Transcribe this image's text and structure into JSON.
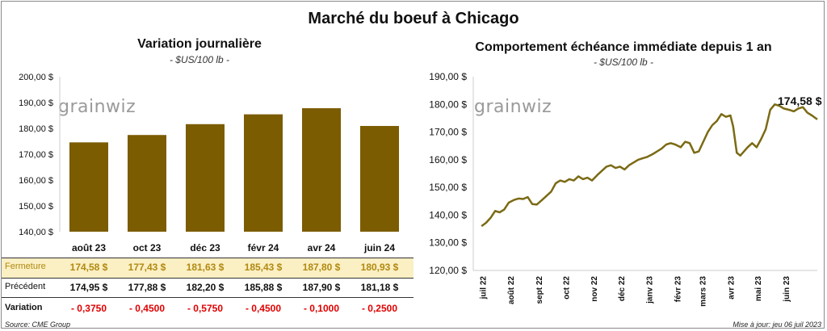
{
  "title": "Marché du boeuf à Chicago",
  "left_panel": {
    "title": "Variation journalière",
    "unit": "- $US/100 lb -",
    "watermark": "grainwiz",
    "rows": {
      "fermeture_label": "Fermeture",
      "precedent_label": "Précédent",
      "variation_label": "Variation"
    },
    "months": [
      "août 23",
      "oct 23",
      "déc 23",
      "févr 24",
      "avr 24",
      "juin 24"
    ],
    "fermeture": [
      "174,58  $",
      "177,43  $",
      "181,63  $",
      "185,43  $",
      "187,80  $",
      "180,93  $"
    ],
    "precedent": [
      "174,95  $",
      "177,88  $",
      "182,20  $",
      "185,88  $",
      "187,90  $",
      "181,18  $"
    ],
    "variation": [
      "- 0,3750",
      "- 0,4500",
      "- 0,5750",
      "- 0,4500",
      "- 0,1000",
      "- 0,2500"
    ]
  },
  "right_panel": {
    "title": "Comportement  échéance immédiate depuis 1 an",
    "unit": "- $US/100 lb -",
    "watermark": "grainwiz",
    "last_label": "174,58 $"
  },
  "footer": {
    "source": "Source: CME Group",
    "updated": "Mise à jour: jeu 06 juil 2023"
  },
  "colors": {
    "bar": "#7b5c00",
    "line": "#7b6a14",
    "highlight_row": "#fbefc4",
    "fermeture_text": "#b08a10",
    "negative": "#e00000"
  },
  "chart_data": [
    {
      "type": "bar",
      "categories": [
        "août 23",
        "oct 23",
        "déc 23",
        "févr 24",
        "avr 24",
        "juin 24"
      ],
      "values": [
        174.58,
        177.43,
        181.63,
        185.43,
        187.8,
        180.93
      ],
      "ylim": [
        140,
        200
      ],
      "yticks": [
        "140,00 $",
        "150,00 $",
        "160,00 $",
        "170,00 $",
        "180,00 $",
        "190,00 $",
        "200,00 $"
      ],
      "ytick_values": [
        140,
        150,
        160,
        170,
        180,
        190,
        200
      ],
      "grid": false
    },
    {
      "type": "line",
      "ylim": [
        120,
        190
      ],
      "yticks": [
        "120,00 $",
        "130,00 $",
        "140,00 $",
        "150,00 $",
        "160,00 $",
        "170,00 $",
        "180,00 $",
        "190,00 $"
      ],
      "ytick_values": [
        120,
        130,
        140,
        150,
        160,
        170,
        180,
        190
      ],
      "xlabels": [
        "juil 22",
        "août 22",
        "sept 22",
        "oct 22",
        "nov 22",
        "déc 22",
        "janv 23",
        "févr 23",
        "mars 23",
        "avr 23",
        "mai 23",
        "juin 23"
      ],
      "xlabel_dates": [
        "2022-07-01",
        "2022-08-01",
        "2022-09-01",
        "2022-10-01",
        "2022-11-01",
        "2022-12-01",
        "2023-01-01",
        "2023-02-01",
        "2023-03-01",
        "2023-04-01",
        "2023-05-01",
        "2023-06-01"
      ],
      "xlim": [
        "2022-06-28",
        "2023-07-06"
      ],
      "series": [
        {
          "x": [
            "2022-06-30",
            "2022-07-05",
            "2022-07-10",
            "2022-07-15",
            "2022-07-20",
            "2022-07-25",
            "2022-07-30",
            "2022-08-05",
            "2022-08-10",
            "2022-08-15",
            "2022-08-20",
            "2022-08-25",
            "2022-08-30",
            "2022-09-05",
            "2022-09-10",
            "2022-09-15",
            "2022-09-20",
            "2022-09-25",
            "2022-09-30",
            "2022-10-05",
            "2022-10-10",
            "2022-10-15",
            "2022-10-20",
            "2022-10-25",
            "2022-10-30",
            "2022-11-05",
            "2022-11-10",
            "2022-11-15",
            "2022-11-20",
            "2022-11-25",
            "2022-11-30",
            "2022-12-05",
            "2022-12-10",
            "2022-12-15",
            "2022-12-20",
            "2022-12-25",
            "2022-12-30",
            "2023-01-05",
            "2023-01-10",
            "2023-01-15",
            "2023-01-20",
            "2023-01-25",
            "2023-01-30",
            "2023-02-05",
            "2023-02-10",
            "2023-02-15",
            "2023-02-20",
            "2023-02-25",
            "2023-03-02",
            "2023-03-07",
            "2023-03-12",
            "2023-03-17",
            "2023-03-22",
            "2023-03-27",
            "2023-04-01",
            "2023-04-04",
            "2023-04-08",
            "2023-04-12",
            "2023-04-16",
            "2023-04-20",
            "2023-04-25",
            "2023-04-30",
            "2023-05-05",
            "2023-05-10",
            "2023-05-15",
            "2023-05-20",
            "2023-05-25",
            "2023-05-30",
            "2023-06-05",
            "2023-06-10",
            "2023-06-15",
            "2023-06-20",
            "2023-06-25",
            "2023-06-30",
            "2023-07-06"
          ],
          "y": [
            136.0,
            137.2,
            139.0,
            141.5,
            141.0,
            142.0,
            144.5,
            145.5,
            146.0,
            145.8,
            146.5,
            144.0,
            143.8,
            145.5,
            147.0,
            148.5,
            151.5,
            152.5,
            152.0,
            153.0,
            152.5,
            154.0,
            153.0,
            153.5,
            152.5,
            154.5,
            156.0,
            157.5,
            158.0,
            157.0,
            157.5,
            156.5,
            158.0,
            159.0,
            160.0,
            160.5,
            161.0,
            162.0,
            163.0,
            164.0,
            165.5,
            166.0,
            165.5,
            164.5,
            166.5,
            166.0,
            162.5,
            163.0,
            166.5,
            170.0,
            172.5,
            174.0,
            176.5,
            175.5,
            176.0,
            172.0,
            162.5,
            161.5,
            163.0,
            164.5,
            166.0,
            164.5,
            167.5,
            171.0,
            178.0,
            180.0,
            179.5,
            178.5,
            178.0,
            177.5,
            178.5,
            179.0,
            177.0,
            176.0,
            174.58
          ]
        }
      ],
      "last_value": 174.58,
      "grid": false
    }
  ]
}
